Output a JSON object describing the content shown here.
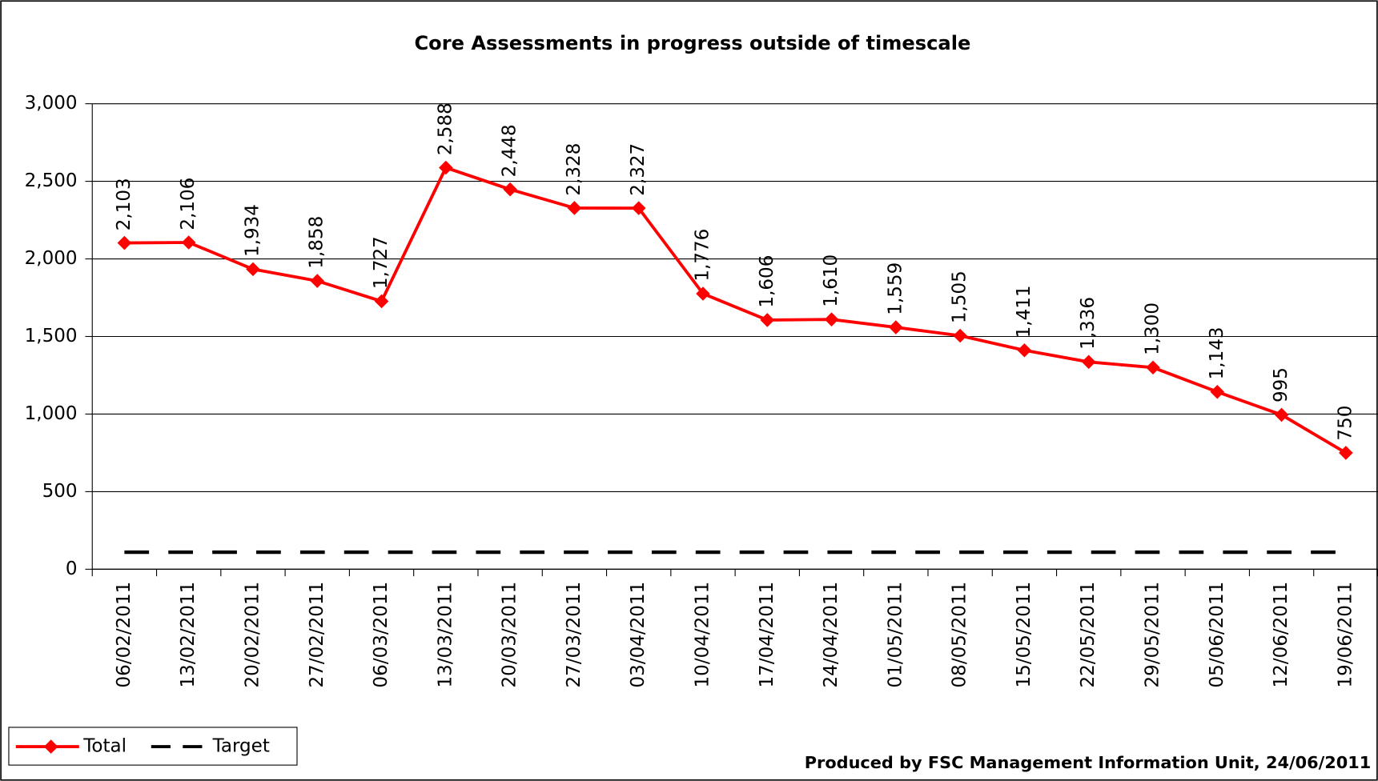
{
  "chart_data": {
    "type": "line",
    "title": "Core Assessments in progress outside of timescale",
    "annotation": "Produced by FSC Management Information Unit, 24/06/2011",
    "categories": [
      "06/02/2011",
      "13/02/2011",
      "20/02/2011",
      "27/02/2011",
      "06/03/2011",
      "13/03/2011",
      "20/03/2011",
      "27/03/2011",
      "03/04/2011",
      "10/04/2011",
      "17/04/2011",
      "24/04/2011",
      "01/05/2011",
      "08/05/2011",
      "15/05/2011",
      "22/05/2011",
      "29/05/2011",
      "05/06/2011",
      "12/06/2011",
      "19/06/2011"
    ],
    "series": [
      {
        "name": "Total",
        "color": "#ff0000",
        "marker": "diamond",
        "values": [
          2103,
          2106,
          1934,
          1858,
          1727,
          2588,
          2448,
          2328,
          2327,
          1776,
          1606,
          1610,
          1559,
          1505,
          1411,
          1336,
          1300,
          1143,
          995,
          750
        ],
        "value_labels": [
          "2,103",
          "2,106",
          "1,934",
          "1,858",
          "1,727",
          "2,588",
          "2,448",
          "2,328",
          "2,327",
          "1,776",
          "1,606",
          "1,610",
          "1,559",
          "1,505",
          "1,411",
          "1,336",
          "1,300",
          "1,143",
          "995",
          "750"
        ]
      },
      {
        "name": "Target",
        "color": "#000000",
        "line_style": "dashed",
        "values": [
          110,
          110,
          110,
          110,
          110,
          110,
          110,
          110,
          110,
          110,
          110,
          110,
          110,
          110,
          110,
          110,
          110,
          110,
          110,
          110
        ]
      }
    ],
    "ylim": [
      0,
      3000
    ],
    "yticks": [
      0,
      500,
      {
        "value": 1000,
        "label": "1,000"
      },
      {
        "value": 1500,
        "label": "1,500"
      },
      {
        "value": 2000,
        "label": "2,000"
      },
      {
        "value": 2500,
        "label": "2,500"
      },
      {
        "value": 3000,
        "label": "3,000"
      }
    ],
    "grid": true,
    "legend": "bottom-left"
  }
}
